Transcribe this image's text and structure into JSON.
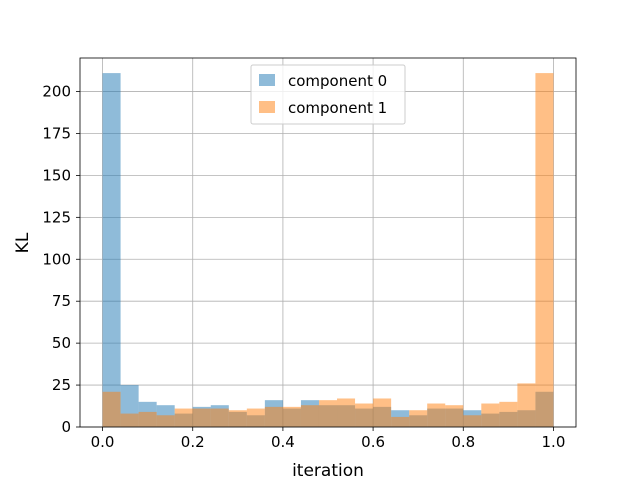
{
  "chart_data": {
    "type": "bar",
    "subtype": "overlaid-histogram",
    "title": "",
    "xlabel": "iteration",
    "ylabel": "KL",
    "xlim": [
      -0.05,
      1.05
    ],
    "ylim": [
      0,
      220
    ],
    "xticks": [
      0.0,
      0.2,
      0.4,
      0.6,
      0.8,
      1.0
    ],
    "xtick_labels": [
      "0.0",
      "0.2",
      "0.4",
      "0.6",
      "0.8",
      "1.0"
    ],
    "yticks": [
      0,
      25,
      50,
      75,
      100,
      125,
      150,
      175,
      200
    ],
    "ytick_labels": [
      "0",
      "25",
      "50",
      "75",
      "100",
      "125",
      "150",
      "175",
      "200"
    ],
    "grid": true,
    "legend_position": "top-center",
    "bin_edges": [
      0.0,
      0.04,
      0.08,
      0.12,
      0.16,
      0.2,
      0.24,
      0.28,
      0.32,
      0.36,
      0.4,
      0.44,
      0.48,
      0.52,
      0.56,
      0.6,
      0.64,
      0.68,
      0.72,
      0.76,
      0.8,
      0.84,
      0.88,
      0.92,
      0.96,
      1.0
    ],
    "series": [
      {
        "name": "component 0",
        "color": "#1f77b4",
        "alpha": 0.5,
        "values": [
          211,
          25,
          15,
          13,
          8,
          12,
          13,
          9,
          7,
          16,
          11,
          16,
          13,
          13,
          11,
          12,
          10,
          7,
          11,
          11,
          10,
          8,
          9,
          10,
          21
        ]
      },
      {
        "name": "component 1",
        "color": "#ff7f0e",
        "alpha": 0.5,
        "values": [
          21,
          8,
          9,
          7,
          11,
          11,
          11,
          10,
          11,
          12,
          12,
          13,
          16,
          17,
          14,
          17,
          6,
          10,
          14,
          13,
          7,
          14,
          15,
          26,
          211
        ]
      }
    ]
  }
}
